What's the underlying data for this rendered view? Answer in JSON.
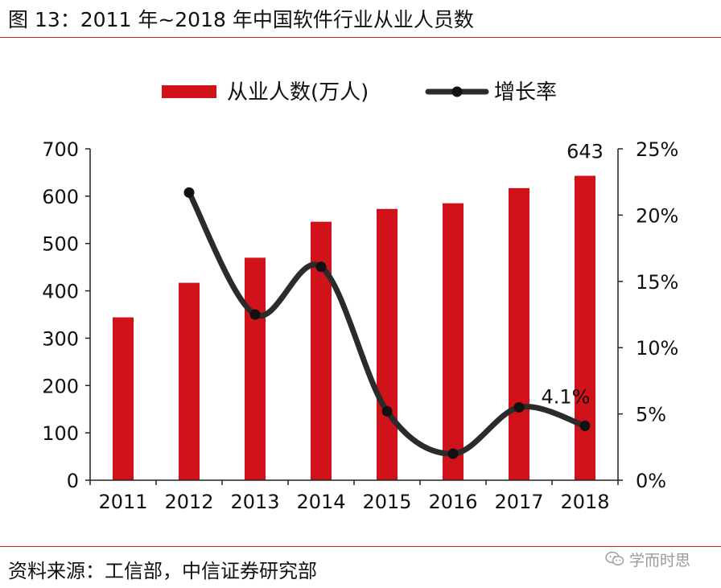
{
  "figure": {
    "title": "图 13：2011 年~2018 年中国软件行业从业人员数",
    "source": "资料来源：工信部，中信证券研究部",
    "watermark": "学而时思",
    "colors": {
      "bar": "#d0121b",
      "line": "#2b2b2b",
      "rule": "#c9242b"
    }
  },
  "chart_data": {
    "type": "bar",
    "categories": [
      "2011",
      "2012",
      "2013",
      "2014",
      "2015",
      "2016",
      "2017",
      "2018"
    ],
    "series": [
      {
        "name": "从业人数(万人)",
        "type": "bar",
        "axis": "left",
        "values": [
          344,
          417,
          470,
          546,
          573,
          585,
          617,
          643
        ]
      },
      {
        "name": "增长率",
        "type": "line",
        "axis": "right",
        "smooth": true,
        "values": [
          null,
          21.7,
          12.5,
          16.1,
          5.2,
          2.0,
          5.5,
          4.1
        ]
      }
    ],
    "left_axis": {
      "min": 0,
      "max": 700,
      "ticks": [
        "0",
        "100",
        "200",
        "300",
        "400",
        "500",
        "600",
        "700"
      ]
    },
    "right_axis": {
      "min": 0,
      "max": 25,
      "ticks": [
        "0%",
        "5%",
        "10%",
        "15%",
        "20%",
        "25%"
      ]
    },
    "annotations": [
      {
        "text": "643",
        "series": "从业人数(万人)",
        "category": "2018"
      },
      {
        "text": "4.1%",
        "series": "增长率",
        "category": "2018"
      }
    ],
    "legend": "top-center",
    "grid": false
  }
}
